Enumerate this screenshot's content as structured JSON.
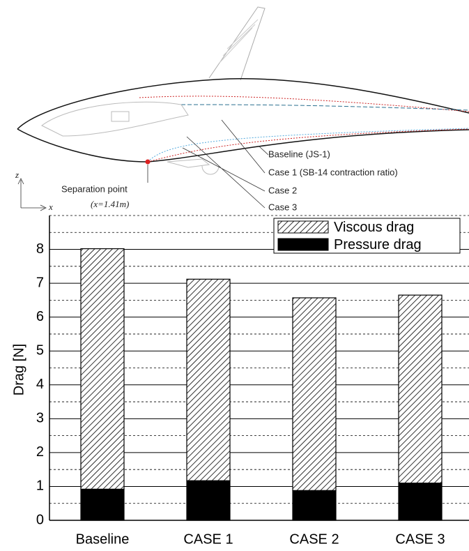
{
  "diagram": {
    "labels": {
      "baseline": "Baseline (JS-1)",
      "case1": "Case 1 (SB-14 contraction ratio)",
      "case2": "Case 2",
      "case3": "Case 3",
      "separation": "Separation point",
      "separation_x": "(x=1.41m)",
      "z_axis": "z",
      "x_axis": "x"
    }
  },
  "chart_data": {
    "type": "stacked_bar",
    "y_label": "Drag [N]",
    "categories": [
      "Baseline",
      "CASE 1",
      "CASE 2",
      "CASE 3"
    ],
    "series": [
      {
        "name": "Pressure drag",
        "color": "#000000",
        "fill": "solid",
        "values": [
          0.92,
          1.17,
          0.88,
          1.1
        ]
      },
      {
        "name": "Viscous drag",
        "color": "#000000",
        "fill": "hatch",
        "values": [
          7.1,
          5.95,
          5.69,
          5.55
        ]
      }
    ],
    "ylim": [
      0,
      9
    ],
    "yticks": [
      0,
      1,
      2,
      3,
      4,
      5,
      6,
      7,
      8
    ],
    "minor_yticks": [
      0.5,
      1.5,
      2.5,
      3.5,
      4.5,
      5.5,
      6.5,
      7.5,
      8.5
    ],
    "grid": true,
    "legend": "upper right"
  }
}
